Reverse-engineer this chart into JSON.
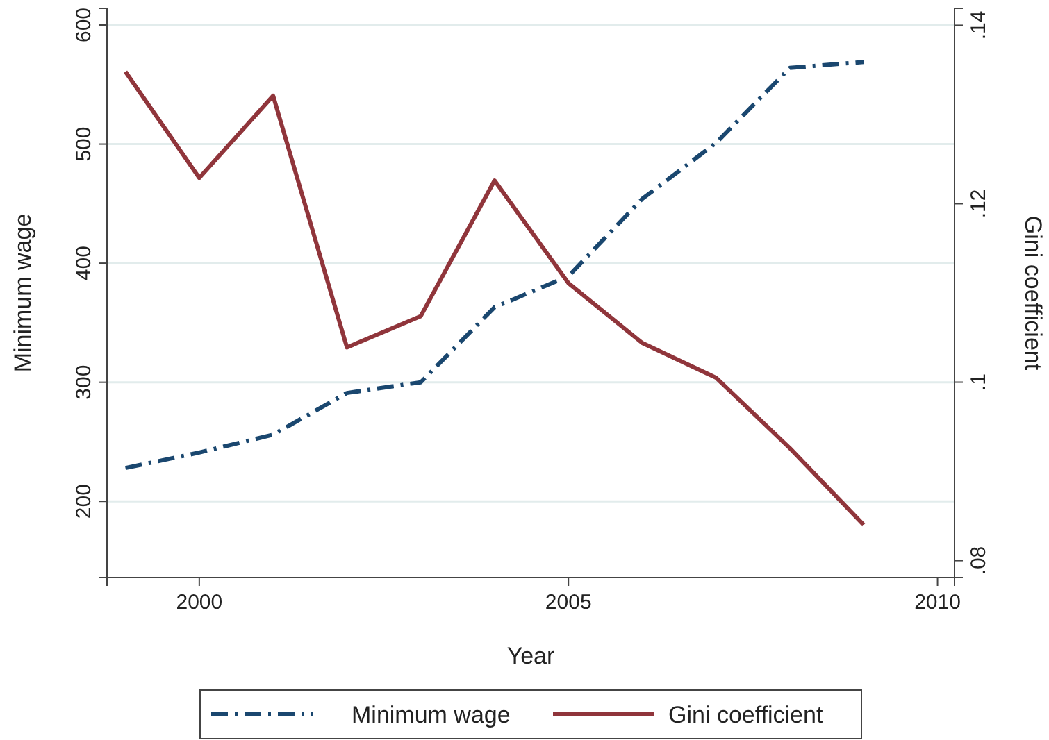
{
  "chart_data": {
    "type": "line",
    "xlabel": "Year",
    "ylabel": "Minimum wage",
    "y2label": "Gini coefficient",
    "x": [
      1999,
      2000,
      2001,
      2002,
      2003,
      2004,
      2005,
      2006,
      2007,
      2008,
      2009
    ],
    "series": [
      {
        "name": "Minimum wage",
        "color": "#1a476f",
        "line_style": "dashdot",
        "values": [
          228,
          241,
          256,
          291,
          300,
          363,
          389,
          454,
          501,
          564,
          569
        ]
      },
      {
        "name": "Gini coefficient",
        "color": "#90353b",
        "line_style": "solid",
        "axis": "y2",
        "values": [
          0.1348,
          0.1229,
          0.1321,
          0.1039,
          0.1074,
          0.1226,
          0.1111,
          0.1044,
          0.1005,
          0.0926,
          0.084
        ]
      }
    ],
    "xlim": [
      1998.75,
      2010.23
    ],
    "xticks": [
      2000,
      2005,
      2010
    ],
    "ylim": [
      136,
      614
    ],
    "yticks": [
      200,
      300,
      400,
      500,
      600
    ],
    "y2lim": [
      0.0781,
      0.1419
    ],
    "y2ticks": [
      {
        "value": 0.08,
        "label": ".08"
      },
      {
        "value": 0.1,
        "label": ".1"
      },
      {
        "value": 0.12,
        "label": ".12"
      },
      {
        "value": 0.14,
        "label": ".14"
      }
    ],
    "grid": "y",
    "legend": "bottom"
  }
}
